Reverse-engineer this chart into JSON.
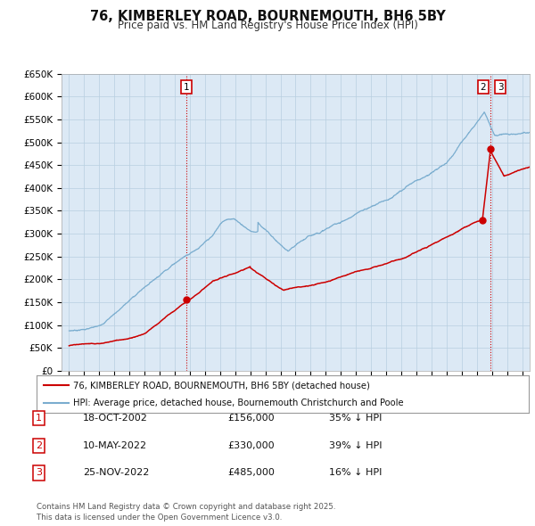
{
  "title": "76, KIMBERLEY ROAD, BOURNEMOUTH, BH6 5BY",
  "subtitle": "Price paid vs. HM Land Registry's House Price Index (HPI)",
  "legend_line1": "76, KIMBERLEY ROAD, BOURNEMOUTH, BH6 5BY (detached house)",
  "legend_line2": "HPI: Average price, detached house, Bournemouth Christchurch and Poole",
  "red_line_color": "#cc0000",
  "blue_line_color": "#7aadcf",
  "vline_color": "#cc0000",
  "plot_bg_color": "#dce9f5",
  "grid_color": "#b8cfe0",
  "footer": "Contains HM Land Registry data © Crown copyright and database right 2025.\nThis data is licensed under the Open Government Licence v3.0.",
  "transactions": [
    {
      "num": 1,
      "date": "18-OCT-2002",
      "price": 156000,
      "year": 2002.79,
      "pct": "35%",
      "dir": "↓"
    },
    {
      "num": 2,
      "date": "10-MAY-2022",
      "price": 330000,
      "year": 2022.36,
      "pct": "39%",
      "dir": "↓"
    },
    {
      "num": 3,
      "date": "25-NOV-2022",
      "price": 485000,
      "year": 2022.9,
      "pct": "16%",
      "dir": "↓"
    }
  ],
  "ylim": [
    0,
    650000
  ],
  "xlim_start": 1994.5,
  "xlim_end": 2025.5,
  "yticks": [
    0,
    50000,
    100000,
    150000,
    200000,
    250000,
    300000,
    350000,
    400000,
    450000,
    500000,
    550000,
    600000,
    650000
  ],
  "ytick_labels": [
    "£0",
    "£50K",
    "£100K",
    "£150K",
    "£200K",
    "£250K",
    "£300K",
    "£350K",
    "£400K",
    "£450K",
    "£500K",
    "£550K",
    "£600K",
    "£650K"
  ]
}
